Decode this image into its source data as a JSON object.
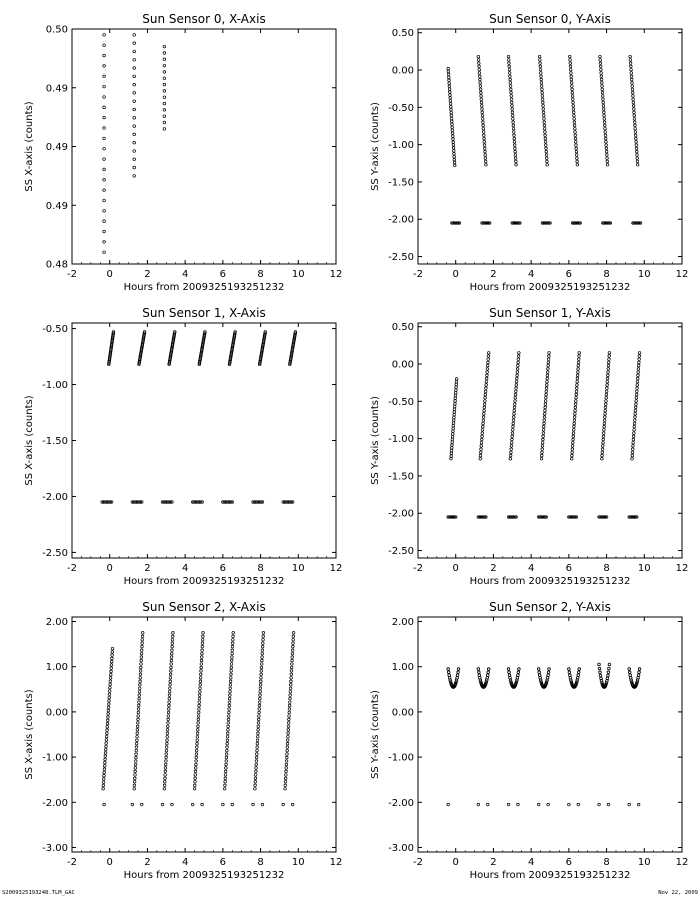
{
  "footer": {
    "left": "S2009325193248.TLM_GAC",
    "right": "Nov 22, 2009"
  },
  "chart_data": [
    {
      "type": "scatter",
      "title": "Sun Sensor 0, X-Axis",
      "xlabel": "Hours from 2009325193251232",
      "ylabel": "SS X-axis (counts)",
      "xlim": [
        -2,
        12
      ],
      "ylim": [
        0.48,
        0.5
      ],
      "xticks": [
        -2,
        0,
        2,
        4,
        6,
        8,
        10,
        12
      ],
      "yticks": [
        0.48,
        0.485,
        0.49,
        0.495,
        0.5
      ],
      "ytick_labels": [
        "0.48",
        "0.49",
        "0.49",
        "0.49",
        "0.50"
      ],
      "series": [
        {
          "segments": [
            {
              "x0": -0.3,
              "x1": -0.3,
              "y0": 0.481,
              "y1": 0.4995,
              "n": 22
            },
            {
              "x0": 1.3,
              "x1": 1.3,
              "y0": 0.4875,
              "y1": 0.4995,
              "n": 18
            },
            {
              "x0": 2.9,
              "x1": 2.9,
              "y0": 0.4915,
              "y1": 0.4985,
              "n": 14
            }
          ]
        }
      ]
    },
    {
      "type": "scatter",
      "title": "Sun Sensor 0, Y-Axis",
      "xlabel": "Hours from 2009325193251232",
      "ylabel": "SS Y-axis (counts)",
      "xlim": [
        -2,
        12
      ],
      "ylim": [
        -2.6,
        0.55
      ],
      "xticks": [
        -2,
        0,
        2,
        4,
        6,
        8,
        10,
        12
      ],
      "yticks": [
        0.5,
        0.0,
        -0.5,
        -1.0,
        -1.5,
        -2.0,
        -2.5
      ],
      "ytick_labels": [
        "0.50",
        "0.00",
        "-0.50",
        "-1.00",
        "-1.50",
        "-2.00",
        "-2.50"
      ],
      "series": [
        {
          "segments": [
            {
              "x0": -0.4,
              "x1": -0.05,
              "y0": 0.02,
              "y1": -1.28,
              "n": 34
            },
            {
              "x0": 1.2,
              "x1": 1.6,
              "y0": 0.18,
              "y1": -1.27,
              "n": 34
            },
            {
              "x0": 2.8,
              "x1": 3.2,
              "y0": 0.18,
              "y1": -1.27,
              "n": 34
            },
            {
              "x0": 4.45,
              "x1": 4.85,
              "y0": 0.18,
              "y1": -1.27,
              "n": 34
            },
            {
              "x0": 6.05,
              "x1": 6.45,
              "y0": 0.18,
              "y1": -1.27,
              "n": 34
            },
            {
              "x0": 7.65,
              "x1": 8.05,
              "y0": 0.18,
              "y1": -1.27,
              "n": 34
            },
            {
              "x0": 9.25,
              "x1": 9.65,
              "y0": 0.18,
              "y1": -1.27,
              "n": 34
            }
          ]
        },
        {
          "segments": [
            {
              "x0": -0.2,
              "x1": 0.2,
              "y0": -2.05,
              "y1": -2.05,
              "n": 8
            },
            {
              "x0": 1.4,
              "x1": 1.8,
              "y0": -2.05,
              "y1": -2.05,
              "n": 8
            },
            {
              "x0": 3.0,
              "x1": 3.4,
              "y0": -2.05,
              "y1": -2.05,
              "n": 8
            },
            {
              "x0": 4.6,
              "x1": 5.0,
              "y0": -2.05,
              "y1": -2.05,
              "n": 8
            },
            {
              "x0": 6.2,
              "x1": 6.6,
              "y0": -2.05,
              "y1": -2.05,
              "n": 8
            },
            {
              "x0": 7.8,
              "x1": 8.2,
              "y0": -2.05,
              "y1": -2.05,
              "n": 8
            },
            {
              "x0": 9.4,
              "x1": 9.8,
              "y0": -2.05,
              "y1": -2.05,
              "n": 8
            }
          ]
        }
      ]
    },
    {
      "type": "scatter",
      "title": "Sun Sensor 1, X-Axis",
      "xlabel": "Hours from 2009325193251232",
      "ylabel": "SS X-axis (counts)",
      "xlim": [
        -2,
        12
      ],
      "ylim": [
        -2.55,
        -0.45
      ],
      "xticks": [
        -2,
        0,
        2,
        4,
        6,
        8,
        10,
        12
      ],
      "yticks": [
        -0.5,
        -1.0,
        -1.5,
        -2.0,
        -2.5
      ],
      "ytick_labels": [
        "-0.50",
        "-1.00",
        "-1.50",
        "-2.00",
        "-2.50"
      ],
      "series": [
        {
          "segments": [
            {
              "x0": -0.05,
              "x1": 0.2,
              "y0": -0.82,
              "y1": -0.53,
              "n": 26
            },
            {
              "x0": 1.55,
              "x1": 1.85,
              "y0": -0.82,
              "y1": -0.53,
              "n": 26
            },
            {
              "x0": 3.15,
              "x1": 3.45,
              "y0": -0.82,
              "y1": -0.53,
              "n": 26
            },
            {
              "x0": 4.75,
              "x1": 5.05,
              "y0": -0.82,
              "y1": -0.53,
              "n": 26
            },
            {
              "x0": 6.35,
              "x1": 6.65,
              "y0": -0.82,
              "y1": -0.53,
              "n": 26
            },
            {
              "x0": 7.95,
              "x1": 8.25,
              "y0": -0.82,
              "y1": -0.53,
              "n": 26
            },
            {
              "x0": 9.55,
              "x1": 9.85,
              "y0": -0.82,
              "y1": -0.53,
              "n": 26
            }
          ]
        },
        {
          "segments": [
            {
              "x0": -0.4,
              "x1": 0.1,
              "y0": -2.05,
              "y1": -2.05,
              "n": 8
            },
            {
              "x0": 1.2,
              "x1": 1.7,
              "y0": -2.05,
              "y1": -2.05,
              "n": 8
            },
            {
              "x0": 2.8,
              "x1": 3.3,
              "y0": -2.05,
              "y1": -2.05,
              "n": 8
            },
            {
              "x0": 4.4,
              "x1": 4.9,
              "y0": -2.05,
              "y1": -2.05,
              "n": 8
            },
            {
              "x0": 6.0,
              "x1": 6.5,
              "y0": -2.05,
              "y1": -2.05,
              "n": 8
            },
            {
              "x0": 7.6,
              "x1": 8.1,
              "y0": -2.05,
              "y1": -2.05,
              "n": 8
            },
            {
              "x0": 9.2,
              "x1": 9.7,
              "y0": -2.05,
              "y1": -2.05,
              "n": 8
            }
          ]
        }
      ]
    },
    {
      "type": "scatter",
      "title": "Sun Sensor 1, Y-Axis",
      "xlabel": "Hours from 2009325193251232",
      "ylabel": "SS Y-axis (counts)",
      "xlim": [
        -2,
        12
      ],
      "ylim": [
        -2.6,
        0.55
      ],
      "xticks": [
        -2,
        0,
        2,
        4,
        6,
        8,
        10,
        12
      ],
      "yticks": [
        0.5,
        0.0,
        -0.5,
        -1.0,
        -1.5,
        -2.0,
        -2.5
      ],
      "ytick_labels": [
        "0.50",
        "0.00",
        "-0.50",
        "-1.00",
        "-1.50",
        "-2.00",
        "-2.50"
      ],
      "series": [
        {
          "segments": [
            {
              "x0": -0.25,
              "x1": 0.05,
              "y0": -1.27,
              "y1": -0.2,
              "n": 30
            },
            {
              "x0": 1.3,
              "x1": 1.75,
              "y0": -1.27,
              "y1": 0.15,
              "n": 34
            },
            {
              "x0": 2.9,
              "x1": 3.35,
              "y0": -1.27,
              "y1": 0.15,
              "n": 34
            },
            {
              "x0": 4.55,
              "x1": 4.95,
              "y0": -1.27,
              "y1": 0.15,
              "n": 34
            },
            {
              "x0": 6.15,
              "x1": 6.55,
              "y0": -1.27,
              "y1": 0.15,
              "n": 34
            },
            {
              "x0": 7.75,
              "x1": 8.15,
              "y0": -1.27,
              "y1": 0.15,
              "n": 34
            },
            {
              "x0": 9.35,
              "x1": 9.75,
              "y0": -1.27,
              "y1": 0.15,
              "n": 34
            }
          ]
        },
        {
          "segments": [
            {
              "x0": -0.4,
              "x1": 0.0,
              "y0": -2.05,
              "y1": -2.05,
              "n": 8
            },
            {
              "x0": 1.2,
              "x1": 1.6,
              "y0": -2.05,
              "y1": -2.05,
              "n": 8
            },
            {
              "x0": 2.8,
              "x1": 3.2,
              "y0": -2.05,
              "y1": -2.05,
              "n": 8
            },
            {
              "x0": 4.4,
              "x1": 4.8,
              "y0": -2.05,
              "y1": -2.05,
              "n": 8
            },
            {
              "x0": 6.0,
              "x1": 6.4,
              "y0": -2.05,
              "y1": -2.05,
              "n": 8
            },
            {
              "x0": 7.6,
              "x1": 8.0,
              "y0": -2.05,
              "y1": -2.05,
              "n": 8
            },
            {
              "x0": 9.2,
              "x1": 9.6,
              "y0": -2.05,
              "y1": -2.05,
              "n": 8
            }
          ]
        }
      ]
    },
    {
      "type": "scatter",
      "title": "Sun Sensor 2, X-Axis",
      "xlabel": "Hours from 2009325193251232",
      "ylabel": "SS X-axis (counts)",
      "xlim": [
        -2,
        12
      ],
      "ylim": [
        -3.1,
        2.1
      ],
      "xticks": [
        -2,
        0,
        2,
        4,
        6,
        8,
        10,
        12
      ],
      "yticks": [
        2.0,
        1.0,
        0.0,
        -1.0,
        -2.0,
        -3.0
      ],
      "ytick_labels": [
        "2.00",
        "1.00",
        "0.00",
        "-1.00",
        "-2.00",
        "-3.00"
      ],
      "series": [
        {
          "segments": [
            {
              "x0": -0.35,
              "x1": 0.15,
              "y0": -1.7,
              "y1": 1.4,
              "n": 44
            },
            {
              "x0": 1.3,
              "x1": 1.75,
              "y0": -1.7,
              "y1": 1.75,
              "n": 46
            },
            {
              "x0": 2.9,
              "x1": 3.35,
              "y0": -1.7,
              "y1": 1.75,
              "n": 46
            },
            {
              "x0": 4.5,
              "x1": 4.95,
              "y0": -1.7,
              "y1": 1.75,
              "n": 46
            },
            {
              "x0": 6.1,
              "x1": 6.55,
              "y0": -1.7,
              "y1": 1.75,
              "n": 46
            },
            {
              "x0": 7.7,
              "x1": 8.15,
              "y0": -1.7,
              "y1": 1.75,
              "n": 46
            },
            {
              "x0": 9.3,
              "x1": 9.75,
              "y0": -1.7,
              "y1": 1.75,
              "n": 46
            }
          ]
        },
        {
          "segments": [
            {
              "x0": -0.3,
              "x1": -0.3,
              "y0": -2.05,
              "y1": -2.05,
              "n": 1
            },
            {
              "x0": 1.2,
              "x1": 1.7,
              "y0": -2.05,
              "y1": -2.05,
              "n": 2
            },
            {
              "x0": 2.8,
              "x1": 3.3,
              "y0": -2.05,
              "y1": -2.05,
              "n": 2
            },
            {
              "x0": 4.4,
              "x1": 4.9,
              "y0": -2.05,
              "y1": -2.05,
              "n": 2
            },
            {
              "x0": 6.0,
              "x1": 6.5,
              "y0": -2.05,
              "y1": -2.05,
              "n": 2
            },
            {
              "x0": 7.6,
              "x1": 8.1,
              "y0": -2.05,
              "y1": -2.05,
              "n": 2
            },
            {
              "x0": 9.2,
              "x1": 9.7,
              "y0": -2.05,
              "y1": -2.05,
              "n": 2
            }
          ]
        }
      ]
    },
    {
      "type": "scatter",
      "title": "Sun Sensor 2, Y-Axis",
      "xlabel": "Hours from 2009325193251232",
      "ylabel": "SS Y-axis (counts)",
      "xlim": [
        -2,
        12
      ],
      "ylim": [
        -3.1,
        2.1
      ],
      "xticks": [
        -2,
        0,
        2,
        4,
        6,
        8,
        10,
        12
      ],
      "yticks": [
        2.0,
        1.0,
        0.0,
        -1.0,
        -2.0,
        -3.0
      ],
      "ytick_labels": [
        "2.00",
        "1.00",
        "0.00",
        "-1.00",
        "-2.00",
        "-3.00"
      ],
      "series": [
        {
          "arcs": [
            {
              "x0": -0.4,
              "x1": 0.15,
              "ytop": 0.95,
              "ybot": 0.55,
              "n": 22
            },
            {
              "x0": 1.2,
              "x1": 1.75,
              "ytop": 0.95,
              "ybot": 0.55,
              "n": 22
            },
            {
              "x0": 2.8,
              "x1": 3.35,
              "ytop": 0.95,
              "ybot": 0.55,
              "n": 22
            },
            {
              "x0": 4.4,
              "x1": 4.95,
              "ytop": 0.95,
              "ybot": 0.55,
              "n": 22
            },
            {
              "x0": 6.0,
              "x1": 6.55,
              "ytop": 0.95,
              "ybot": 0.55,
              "n": 22
            },
            {
              "x0": 7.6,
              "x1": 8.15,
              "ytop": 1.05,
              "ybot": 0.55,
              "n": 22
            },
            {
              "x0": 9.2,
              "x1": 9.75,
              "ytop": 0.95,
              "ybot": 0.55,
              "n": 22
            }
          ]
        },
        {
          "segments": [
            {
              "x0": -0.4,
              "x1": -0.4,
              "y0": -2.05,
              "y1": -2.05,
              "n": 1
            },
            {
              "x0": 1.2,
              "x1": 1.7,
              "y0": -2.05,
              "y1": -2.05,
              "n": 2
            },
            {
              "x0": 2.8,
              "x1": 3.3,
              "y0": -2.05,
              "y1": -2.05,
              "n": 2
            },
            {
              "x0": 4.4,
              "x1": 4.9,
              "y0": -2.05,
              "y1": -2.05,
              "n": 2
            },
            {
              "x0": 6.0,
              "x1": 6.5,
              "y0": -2.05,
              "y1": -2.05,
              "n": 2
            },
            {
              "x0": 7.6,
              "x1": 8.1,
              "y0": -2.05,
              "y1": -2.05,
              "n": 2
            },
            {
              "x0": 9.2,
              "x1": 9.7,
              "y0": -2.05,
              "y1": -2.05,
              "n": 2
            }
          ]
        }
      ]
    }
  ]
}
